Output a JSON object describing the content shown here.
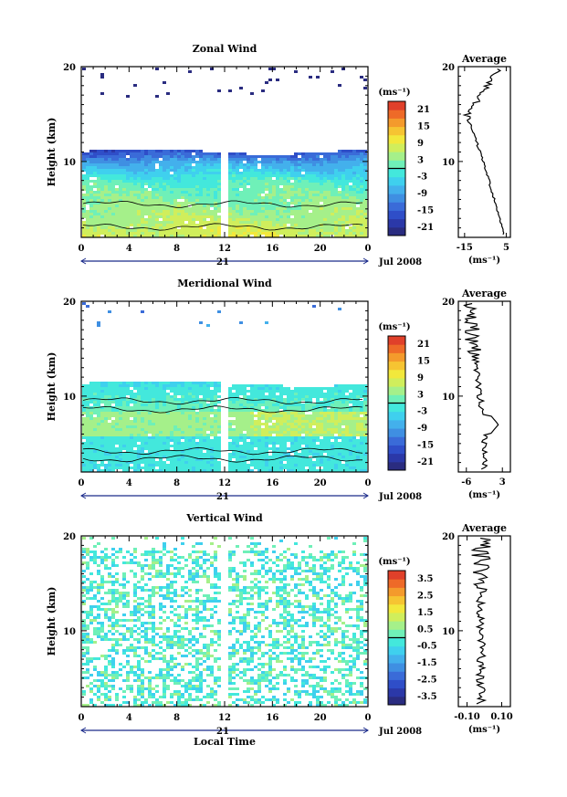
{
  "chart_data": [
    {
      "type": "heatmap",
      "title": "Zonal Wind",
      "ylabel": "Height (km)",
      "xlabel": "",
      "x_ticks": [
        "0",
        "4",
        "8",
        "12",
        "16",
        "20",
        "0"
      ],
      "y_ticks": [
        "20",
        "10"
      ],
      "date_day": "21",
      "date_right": "Jul 2008",
      "xlim": [
        0,
        24
      ],
      "ylim": [
        2,
        20
      ],
      "gap_x": [
        11.5,
        12.2
      ],
      "colorbar": {
        "unit": "(ms⁻¹)",
        "ticks": [
          "21",
          "15",
          "9",
          "3",
          "-3",
          "-9",
          "-15",
          "-21"
        ],
        "range": [
          -24,
          24
        ]
      },
      "profile": {
        "title": "Average",
        "x_ticks": [
          "-15",
          "5"
        ],
        "xlim": [
          -18,
          7
        ],
        "unit": "(ms⁻¹)",
        "y_ticks": [
          "20",
          "10"
        ]
      },
      "field": "zonal"
    },
    {
      "type": "heatmap",
      "title": "Meridional Wind",
      "ylabel": "Height (km)",
      "xlabel": "",
      "x_ticks": [
        "0",
        "4",
        "8",
        "12",
        "16",
        "20",
        "0"
      ],
      "y_ticks": [
        "20",
        "10"
      ],
      "date_day": "21",
      "date_right": "Jul 2008",
      "xlim": [
        0,
        24
      ],
      "ylim": [
        2,
        20
      ],
      "gap_x": [
        11.5,
        12.2
      ],
      "colorbar": {
        "unit": "(ms⁻¹)",
        "ticks": [
          "21",
          "15",
          "9",
          "3",
          "-3",
          "-9",
          "-15",
          "-21"
        ],
        "range": [
          -24,
          24
        ]
      },
      "profile": {
        "title": "Average",
        "x_ticks": [
          "-6",
          "3"
        ],
        "xlim": [
          -8,
          5
        ],
        "unit": "(ms⁻¹)",
        "y_ticks": [
          "20",
          "10"
        ]
      },
      "field": "meridional"
    },
    {
      "type": "heatmap",
      "title": "Vertical Wind",
      "ylabel": "Height (km)",
      "xlabel": "Local Time",
      "x_ticks": [
        "0",
        "4",
        "8",
        "12",
        "16",
        "20",
        "0"
      ],
      "y_ticks": [
        "20",
        "10"
      ],
      "date_day": "21",
      "date_right": "Jul 2008",
      "xlim": [
        0,
        24
      ],
      "ylim": [
        2,
        20
      ],
      "gap_x": [
        11.5,
        12.2
      ],
      "colorbar": {
        "unit": "(ms⁻¹)",
        "ticks": [
          "3.5",
          "2.5",
          "1.5",
          "0.5",
          "-0.5",
          "-1.5",
          "-2.5",
          "-3.5"
        ],
        "range": [
          -4,
          4
        ]
      },
      "profile": {
        "title": "Average",
        "x_ticks": [
          "-0.10",
          "0.10"
        ],
        "xlim": [
          -0.15,
          0.15
        ],
        "unit": "(ms⁻¹)",
        "y_ticks": [
          "20",
          "10"
        ]
      },
      "field": "vertical"
    }
  ]
}
